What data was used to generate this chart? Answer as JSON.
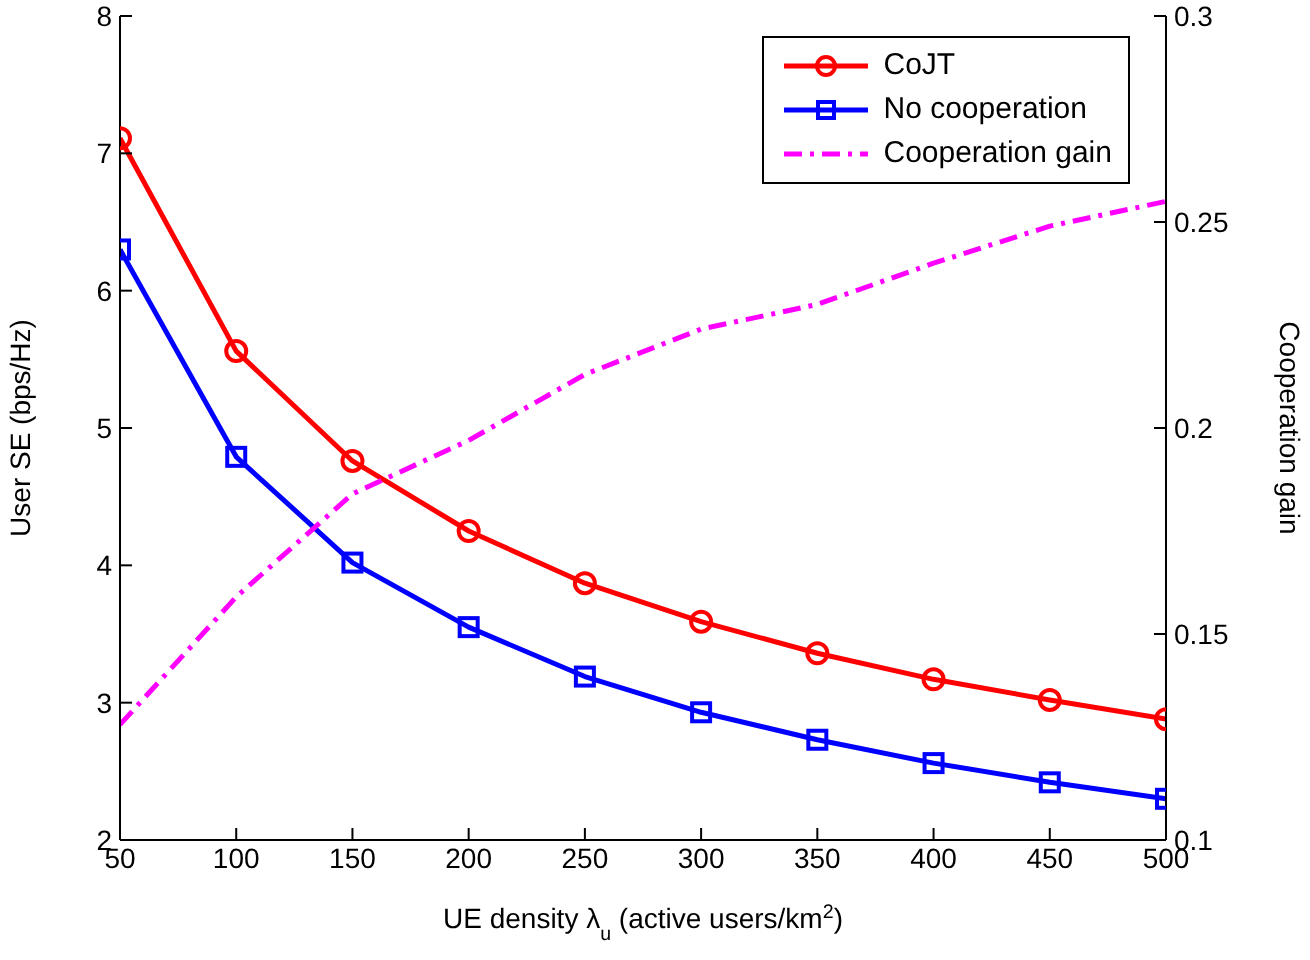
{
  "chart_data": {
    "type": "line",
    "xlabel": "UE density λ$_{u}$ (active users/km$^{2}$)",
    "ylabel": "User SE (bps/Hz)",
    "y2label": "Cooperation gain",
    "x": [
      50,
      100,
      150,
      200,
      250,
      300,
      350,
      400,
      450,
      500
    ],
    "series": [
      {
        "name": "CoJT",
        "color": "#ff0000",
        "marker": "circle",
        "line_style": "solid",
        "values": [
          7.11,
          5.56,
          4.76,
          4.25,
          3.87,
          3.59,
          3.36,
          3.17,
          3.02,
          2.88
        ]
      },
      {
        "name": "No cooperation",
        "color": "#0000ff",
        "marker": "square",
        "line_style": "solid",
        "values": [
          6.3,
          4.79,
          4.02,
          3.55,
          3.19,
          2.93,
          2.73,
          2.56,
          2.42,
          2.3
        ]
      },
      {
        "name": "Cooperation gain",
        "color": "#ff00ff",
        "marker": "none",
        "line_style": "dashed",
        "axis": "y2",
        "values": [
          0.128,
          0.159,
          0.184,
          0.197,
          0.213,
          0.224,
          0.23,
          0.24,
          0.249,
          0.255
        ]
      }
    ],
    "xlim": [
      50,
      500
    ],
    "xticks": [
      50,
      100,
      150,
      200,
      250,
      300,
      350,
      400,
      450,
      500
    ],
    "ylim": [
      2,
      8
    ],
    "yticks": [
      2,
      3,
      4,
      5,
      6,
      7,
      8
    ],
    "y2lim": [
      0.1,
      0.3
    ],
    "y2ticks": [
      0.1,
      0.15,
      0.2,
      0.25,
      0.3
    ],
    "grid": false,
    "legend": "top right"
  }
}
